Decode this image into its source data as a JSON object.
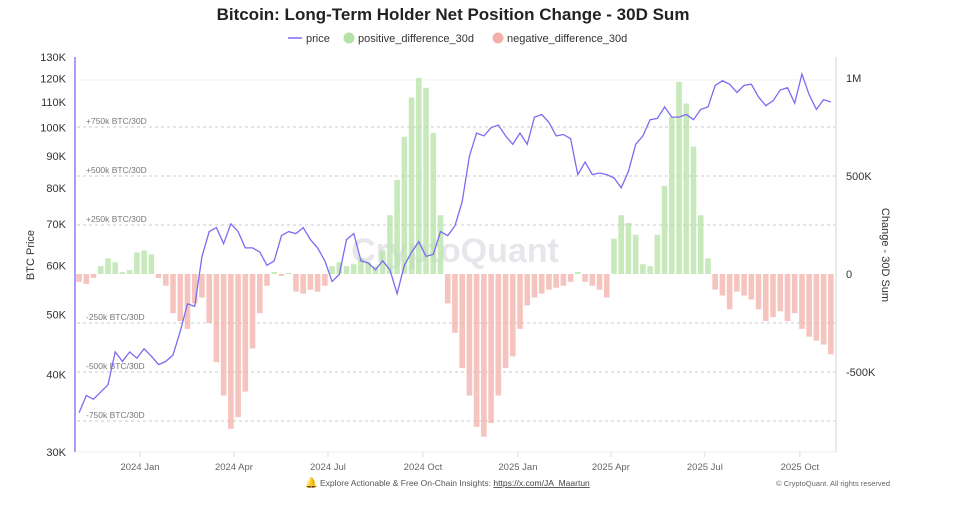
{
  "chart_data": {
    "type": "bar+line",
    "title": "Bitcoin: Long-Term Holder Net Position Change - 30D Sum",
    "legend": [
      {
        "name": "price",
        "color": "#7b6cf0",
        "marker": "line"
      },
      {
        "name": "positive_difference_30d",
        "color": "#b5e2a6",
        "marker": "circle"
      },
      {
        "name": "negative_difference_30d",
        "color": "#f3b0a8",
        "marker": "circle"
      }
    ],
    "legend_placement": "top-center",
    "y_left": {
      "label": "BTC Price",
      "scale": "log",
      "range": [
        30000,
        130000
      ],
      "ticks": [
        "130K",
        "120K",
        "110K",
        "100K",
        "90K",
        "80K",
        "70K",
        "60K",
        "50K",
        "40K",
        "30K"
      ],
      "tick_values": [
        130000,
        120000,
        110000,
        100000,
        90000,
        80000,
        70000,
        60000,
        50000,
        40000,
        30000
      ]
    },
    "y_right": {
      "label": "Change - 30D Sum",
      "scale": "linear",
      "range": [
        -908000,
        1107000
      ],
      "ticks": [
        "1M",
        "500K",
        "0",
        "-500K"
      ],
      "tick_values": [
        1000000,
        500000,
        0,
        -500000
      ]
    },
    "x_axis": {
      "ticks": [
        "2024 Jan",
        "2024 Apr",
        "2024 Jul",
        "2024 Oct",
        "2025 Jan",
        "2025 Apr",
        "2025 Jul",
        "2025 Oct"
      ],
      "tick_dates": [
        "2024-01-01",
        "2024-04-01",
        "2024-07-01",
        "2024-10-01",
        "2025-01-01",
        "2025-04-01",
        "2025-07-01",
        "2025-10-01"
      ],
      "range": [
        "2023-11-01",
        "2025-11-05"
      ]
    },
    "reference_lines": [
      {
        "value": 750000,
        "label": "+750k BTC/30D"
      },
      {
        "value": 500000,
        "label": "+500k BTC/30D"
      },
      {
        "value": 250000,
        "label": "+250k BTC/30D"
      },
      {
        "value": -250000,
        "label": "-250k BTC/30D"
      },
      {
        "value": -500000,
        "label": "-500k BTC/30D"
      },
      {
        "value": -750000,
        "label": "-750k BTC/30D"
      }
    ],
    "dates": [
      "2023-11-03",
      "2023-11-10",
      "2023-11-17",
      "2023-11-24",
      "2023-12-01",
      "2023-12-08",
      "2023-12-15",
      "2023-12-22",
      "2023-12-29",
      "2024-01-05",
      "2024-01-12",
      "2024-01-19",
      "2024-01-26",
      "2024-02-02",
      "2024-02-09",
      "2024-02-16",
      "2024-02-23",
      "2024-03-01",
      "2024-03-08",
      "2024-03-15",
      "2024-03-22",
      "2024-03-29",
      "2024-04-05",
      "2024-04-12",
      "2024-04-19",
      "2024-04-26",
      "2024-05-03",
      "2024-05-10",
      "2024-05-17",
      "2024-05-24",
      "2024-05-31",
      "2024-06-07",
      "2024-06-14",
      "2024-06-21",
      "2024-06-28",
      "2024-07-05",
      "2024-07-12",
      "2024-07-19",
      "2024-07-26",
      "2024-08-02",
      "2024-08-09",
      "2024-08-16",
      "2024-08-23",
      "2024-08-30",
      "2024-09-06",
      "2024-09-13",
      "2024-09-20",
      "2024-09-27",
      "2024-10-04",
      "2024-10-11",
      "2024-10-18",
      "2024-10-25",
      "2024-11-01",
      "2024-11-08",
      "2024-11-15",
      "2024-11-22",
      "2024-11-29",
      "2024-12-06",
      "2024-12-13",
      "2024-12-20",
      "2024-12-27",
      "2025-01-03",
      "2025-01-10",
      "2025-01-17",
      "2025-01-24",
      "2025-01-31",
      "2025-02-07",
      "2025-02-14",
      "2025-02-21",
      "2025-02-28",
      "2025-03-07",
      "2025-03-14",
      "2025-03-21",
      "2025-03-28",
      "2025-04-04",
      "2025-04-11",
      "2025-04-18",
      "2025-04-25",
      "2025-05-02",
      "2025-05-09",
      "2025-05-16",
      "2025-05-23",
      "2025-05-30",
      "2025-06-06",
      "2025-06-13",
      "2025-06-20",
      "2025-06-27",
      "2025-07-04",
      "2025-07-11",
      "2025-07-18",
      "2025-07-25",
      "2025-08-01",
      "2025-08-08",
      "2025-08-15",
      "2025-08-22",
      "2025-08-29",
      "2025-09-05",
      "2025-09-12",
      "2025-09-19",
      "2025-09-26",
      "2025-10-03",
      "2025-10-10",
      "2025-10-17",
      "2025-10-24",
      "2025-10-31"
    ],
    "price": [
      34700,
      37000,
      36500,
      37500,
      38500,
      43500,
      42000,
      43500,
      42500,
      44000,
      42800,
      41500,
      42000,
      43000,
      47000,
      52000,
      51500,
      62000,
      68000,
      69000,
      65000,
      70000,
      68000,
      64000,
      64000,
      63000,
      60000,
      61000,
      67000,
      68000,
      67500,
      69000,
      66000,
      64000,
      61000,
      56500,
      58000,
      66000,
      67500,
      61000,
      60500,
      59000,
      61000,
      59000,
      54000,
      60000,
      63000,
      65500,
      62000,
      62500,
      68000,
      67000,
      69500,
      76000,
      90000,
      98000,
      97000,
      100000,
      101000,
      97000,
      94000,
      98000,
      94000,
      104000,
      105000,
      102000,
      97000,
      97500,
      96000,
      84000,
      88000,
      84000,
      84500,
      84000,
      83000,
      80000,
      85000,
      94000,
      97000,
      103000,
      103500,
      108000,
      104000,
      104000,
      105000,
      103000,
      107000,
      108000,
      117000,
      119000,
      117500,
      114000,
      117000,
      117500,
      112000,
      108500,
      110500,
      115000,
      116000,
      109500,
      122000,
      113000,
      107000,
      111000,
      110000
    ],
    "difference_30d": [
      -40000,
      -50000,
      -20000,
      40000,
      80000,
      60000,
      10000,
      20000,
      110000,
      120000,
      100000,
      -20000,
      -60000,
      -200000,
      -240000,
      -280000,
      -150000,
      -120000,
      -250000,
      -450000,
      -620000,
      -790000,
      -730000,
      -600000,
      -380000,
      -200000,
      -60000,
      10000,
      -10000,
      5000,
      -90000,
      -100000,
      -80000,
      -90000,
      -60000,
      40000,
      60000,
      40000,
      50000,
      80000,
      60000,
      40000,
      120000,
      300000,
      480000,
      700000,
      900000,
      1000000,
      950000,
      720000,
      300000,
      -150000,
      -300000,
      -480000,
      -620000,
      -780000,
      -830000,
      -760000,
      -620000,
      -480000,
      -420000,
      -280000,
      -160000,
      -120000,
      -100000,
      -80000,
      -70000,
      -60000,
      -40000,
      10000,
      -40000,
      -60000,
      -80000,
      -120000,
      180000,
      300000,
      260000,
      200000,
      50000,
      40000,
      200000,
      450000,
      800000,
      980000,
      870000,
      650000,
      300000,
      80000,
      -80000,
      -110000,
      -180000,
      -90000,
      -110000,
      -130000,
      -180000,
      -240000,
      -220000,
      -190000,
      -240000,
      -200000,
      -280000,
      -320000,
      -340000,
      -360000,
      -410000
    ],
    "grid": "horizontal dashed reference lines",
    "watermark": "CryptoQuant"
  },
  "footer": {
    "icon": "bell-icon",
    "text": "Explore Actionable & Free On-Chain Insights: ",
    "link": "https://x.com/JA_Maartun",
    "copyright": "© CryptoQuant. All rights reserved"
  }
}
